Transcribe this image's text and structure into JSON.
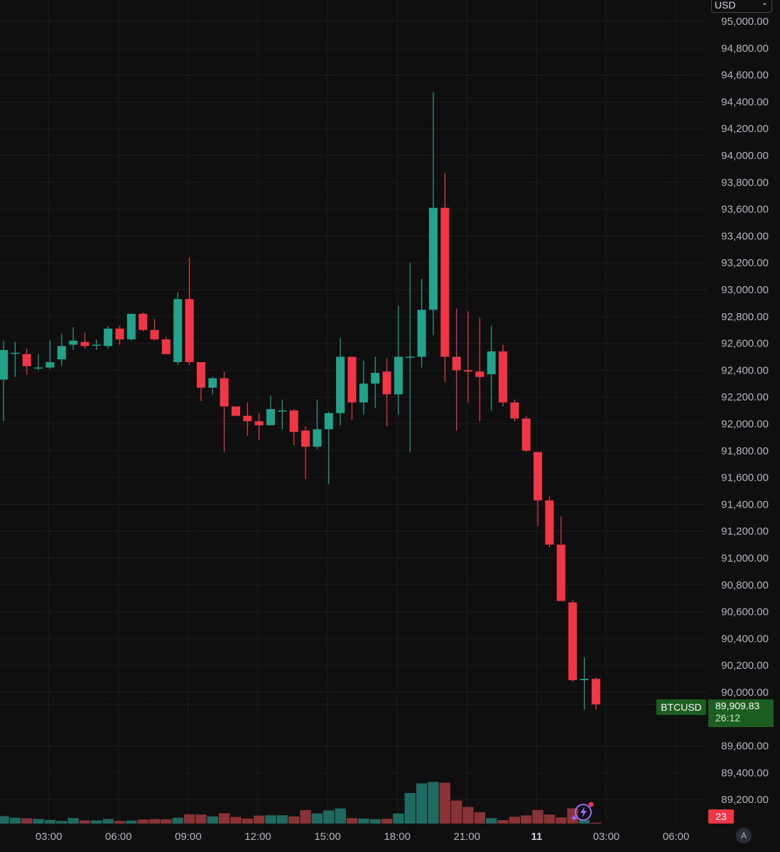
{
  "currency_select": {
    "value": "USD"
  },
  "symbol": "BTCUSD",
  "last_price_label": "89,909.83",
  "countdown": "26:12",
  "volume_label": "23",
  "auto_scale_label": "A",
  "colors": {
    "up": "#22a38c",
    "down": "#f23645",
    "volume_up": "#1f6b62",
    "volume_down": "#8a3336",
    "background": "#0f0f0f",
    "grid": "#1c1c1f"
  },
  "chart_data": {
    "type": "candlestick",
    "interval_minutes": 30,
    "y_axis_ticks": [
      "95,000.00",
      "94,800.00",
      "94,600.00",
      "94,400.00",
      "94,200.00",
      "94,000.00",
      "93,800.00",
      "93,600.00",
      "93,400.00",
      "93,200.00",
      "93,000.00",
      "92,800.00",
      "92,600.00",
      "92,400.00",
      "92,200.00",
      "92,000.00",
      "91,800.00",
      "91,600.00",
      "91,400.00",
      "91,200.00",
      "91,000.00",
      "90,800.00",
      "90,600.00",
      "90,400.00",
      "90,200.00",
      "90,000.00",
      "89,600.00",
      "89,400.00",
      "89,200.00"
    ],
    "ylim": [
      89000,
      95130
    ],
    "x_axis_ticks": [
      {
        "label": "03:00",
        "bar_index": 2
      },
      {
        "label": "06:00",
        "bar_index": 8
      },
      {
        "label": "09:00",
        "bar_index": 14
      },
      {
        "label": "12:00",
        "bar_index": 20
      },
      {
        "label": "15:00",
        "bar_index": 26
      },
      {
        "label": "18:00",
        "bar_index": 32
      },
      {
        "label": "21:00",
        "bar_index": 38
      },
      {
        "label": "11",
        "bar_index": 44,
        "bold": true
      },
      {
        "label": "03:00",
        "bar_index": 50
      },
      {
        "label": "06:00",
        "bar_index": 56
      }
    ],
    "last_price": 89909.83,
    "candles": [
      {
        "o": 92330,
        "h": 92620,
        "l": 92020,
        "c": 92550,
        "v": 45
      },
      {
        "o": 92530,
        "h": 92610,
        "l": 92350,
        "c": 92530,
        "v": 35
      },
      {
        "o": 92520,
        "h": 92560,
        "l": 92370,
        "c": 92430,
        "v": 32
      },
      {
        "o": 92420,
        "h": 92520,
        "l": 92400,
        "c": 92420,
        "v": 28
      },
      {
        "o": 92420,
        "h": 92620,
        "l": 92410,
        "c": 92460,
        "v": 22
      },
      {
        "o": 92480,
        "h": 92670,
        "l": 92430,
        "c": 92580,
        "v": 16
      },
      {
        "o": 92590,
        "h": 92720,
        "l": 92550,
        "c": 92620,
        "v": 33
      },
      {
        "o": 92610,
        "h": 92680,
        "l": 92560,
        "c": 92580,
        "v": 20
      },
      {
        "o": 92590,
        "h": 92630,
        "l": 92550,
        "c": 92590,
        "v": 19
      },
      {
        "o": 92580,
        "h": 92730,
        "l": 92560,
        "c": 92710,
        "v": 28
      },
      {
        "o": 92710,
        "h": 92730,
        "l": 92590,
        "c": 92630,
        "v": 16
      },
      {
        "o": 92630,
        "h": 92820,
        "l": 92620,
        "c": 92820,
        "v": 18
      },
      {
        "o": 92820,
        "h": 92830,
        "l": 92690,
        "c": 92700,
        "v": 25
      },
      {
        "o": 92700,
        "h": 92780,
        "l": 92620,
        "c": 92630,
        "v": 27
      },
      {
        "o": 92630,
        "h": 92650,
        "l": 92520,
        "c": 92520,
        "v": 26
      },
      {
        "o": 92460,
        "h": 92980,
        "l": 92440,
        "c": 92930,
        "v": 35
      },
      {
        "o": 92930,
        "h": 93240,
        "l": 92440,
        "c": 92460,
        "v": 56
      },
      {
        "o": 92460,
        "h": 92440,
        "l": 92170,
        "c": 92270,
        "v": 54
      },
      {
        "o": 92270,
        "h": 92350,
        "l": 92220,
        "c": 92340,
        "v": 43
      },
      {
        "o": 92340,
        "h": 92390,
        "l": 91790,
        "c": 92130,
        "v": 62
      },
      {
        "o": 92130,
        "h": 92130,
        "l": 92060,
        "c": 92060,
        "v": 40
      },
      {
        "o": 92060,
        "h": 92160,
        "l": 91910,
        "c": 92020,
        "v": 30
      },
      {
        "o": 92020,
        "h": 92080,
        "l": 91880,
        "c": 91990,
        "v": 48
      },
      {
        "o": 91990,
        "h": 92210,
        "l": 91990,
        "c": 92110,
        "v": 50
      },
      {
        "o": 92100,
        "h": 92180,
        "l": 91960,
        "c": 92100,
        "v": 50
      },
      {
        "o": 92100,
        "h": 92110,
        "l": 91840,
        "c": 91940,
        "v": 43
      },
      {
        "o": 91950,
        "h": 91980,
        "l": 91590,
        "c": 91830,
        "v": 81
      },
      {
        "o": 91830,
        "h": 92180,
        "l": 91810,
        "c": 91960,
        "v": 61
      },
      {
        "o": 91960,
        "h": 92090,
        "l": 91550,
        "c": 92080,
        "v": 79
      },
      {
        "o": 92080,
        "h": 92640,
        "l": 91990,
        "c": 92500,
        "v": 91
      },
      {
        "o": 92500,
        "h": 92490,
        "l": 92030,
        "c": 92160,
        "v": 33
      },
      {
        "o": 92160,
        "h": 92470,
        "l": 92070,
        "c": 92300,
        "v": 30
      },
      {
        "o": 92300,
        "h": 92500,
        "l": 92120,
        "c": 92380,
        "v": 27
      },
      {
        "o": 92390,
        "h": 92490,
        "l": 91980,
        "c": 92220,
        "v": 29
      },
      {
        "o": 92220,
        "h": 92880,
        "l": 92070,
        "c": 92500,
        "v": 60
      },
      {
        "o": 92500,
        "h": 93200,
        "l": 91790,
        "c": 92500,
        "v": 183
      },
      {
        "o": 92500,
        "h": 93080,
        "l": 92420,
        "c": 92850,
        "v": 241
      },
      {
        "o": 92850,
        "h": 94470,
        "l": 92660,
        "c": 93610,
        "v": 250
      },
      {
        "o": 93610,
        "h": 93870,
        "l": 92310,
        "c": 92500,
        "v": 245
      },
      {
        "o": 92500,
        "h": 92860,
        "l": 91950,
        "c": 92400,
        "v": 138
      },
      {
        "o": 92400,
        "h": 92840,
        "l": 92160,
        "c": 92390,
        "v": 100
      },
      {
        "o": 92390,
        "h": 92790,
        "l": 92020,
        "c": 92350,
        "v": 68
      },
      {
        "o": 92370,
        "h": 92730,
        "l": 92100,
        "c": 92540,
        "v": 33
      },
      {
        "o": 92540,
        "h": 92590,
        "l": 92130,
        "c": 92160,
        "v": 21
      },
      {
        "o": 92160,
        "h": 92180,
        "l": 92020,
        "c": 92040,
        "v": 41
      },
      {
        "o": 92040,
        "h": 92060,
        "l": 91790,
        "c": 91800,
        "v": 49
      },
      {
        "o": 91790,
        "h": 91790,
        "l": 91240,
        "c": 91430,
        "v": 82
      },
      {
        "o": 91430,
        "h": 91460,
        "l": 91080,
        "c": 91100,
        "v": 54
      },
      {
        "o": 91100,
        "h": 91310,
        "l": 90690,
        "c": 90680,
        "v": 37
      },
      {
        "o": 90670,
        "h": 90690,
        "l": 90080,
        "c": 90090,
        "v": 92
      },
      {
        "o": 90090,
        "h": 90260,
        "l": 89870,
        "c": 90100,
        "v": 21
      },
      {
        "o": 90100,
        "h": 90110,
        "l": 89870,
        "c": 89910,
        "v": 6
      }
    ]
  }
}
